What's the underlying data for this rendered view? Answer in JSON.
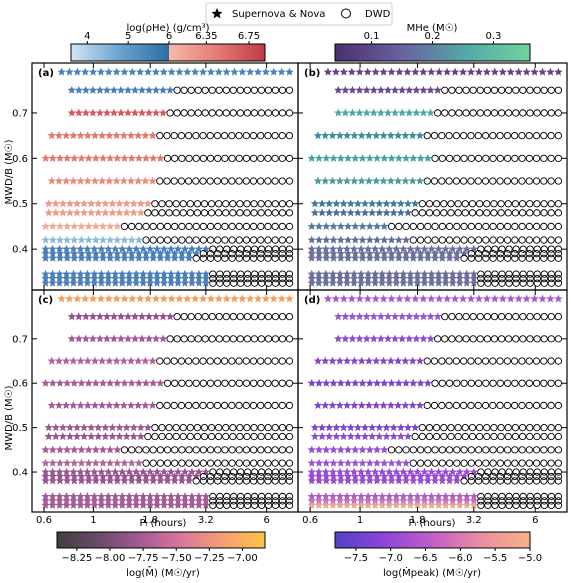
{
  "legend": {
    "entries": [
      {
        "label": "Supernova & Nova",
        "marker": "filled-star"
      },
      {
        "label": "DWD",
        "marker": "open-circle"
      }
    ]
  },
  "colorbars": [
    {
      "id": "rho",
      "title": "log(ρHe) (g/cm³)",
      "segments": [
        {
          "ticks": [
            "4",
            "5",
            "6"
          ],
          "range": [
            3.6,
            6.0
          ],
          "gradient": [
            "#d2e6f2",
            "#6aa3cf",
            "#2b6ea7"
          ]
        },
        {
          "ticks": [
            "6.35",
            "6.75"
          ],
          "range": [
            6.0,
            6.9
          ],
          "gradient": [
            "#f6b9a8",
            "#e47c72",
            "#c0394a"
          ]
        }
      ]
    },
    {
      "id": "mhe",
      "title": "MHe (M☉)",
      "ticks": [
        "0.1",
        "0.2",
        "0.3"
      ],
      "range": [
        0.04,
        0.36
      ],
      "gradient": [
        "#4b2f6e",
        "#6a5f9e",
        "#55a8a8",
        "#6fd39c"
      ]
    },
    {
      "id": "mdot",
      "title": "log(M̄̇) (M☉/yr)",
      "ticks": [
        "−8.25",
        "−8.00",
        "−7.75",
        "−7.50",
        "−7.25",
        "−7.00"
      ],
      "range": [
        -8.4,
        -6.83
      ],
      "gradient": [
        "#3f3f3f",
        "#6b4a6a",
        "#a45a94",
        "#d9779a",
        "#f79f74",
        "#fdc346"
      ]
    },
    {
      "id": "mpeak",
      "title": "log(Ṁpeak) (M☉/yr)",
      "ticks": [
        "−7.5",
        "−7.0",
        "−6.5",
        "−6.0",
        "−5.5",
        "−5.0"
      ],
      "range": [
        -7.8,
        -5.0
      ],
      "gradient": [
        "#5340c7",
        "#8c46d9",
        "#c15ec7",
        "#e98fa2",
        "#f6b087"
      ]
    }
  ],
  "panels": [
    {
      "label": "(a)",
      "colorbar": "rho"
    },
    {
      "label": "(b)",
      "colorbar": "mhe"
    },
    {
      "label": "(c)",
      "colorbar": "mdot"
    },
    {
      "label": "(d)",
      "colorbar": "mpeak"
    }
  ],
  "axes": {
    "xlabel": "Pᵢ (hours)",
    "ylabel": "MWD/B (M☉)",
    "xticks": [
      "0.6",
      "1",
      "1.8",
      "3.2",
      "6"
    ],
    "xtick_values": [
      0.6,
      1.0,
      1.8,
      3.2,
      6.0
    ],
    "xscale": "log",
    "xlim": [
      0.53,
      8.3
    ],
    "yticks": [
      "0.4",
      "0.5",
      "0.6",
      "0.7"
    ],
    "ytick_values": [
      0.4,
      0.5,
      0.6,
      0.7
    ],
    "ylim": [
      0.31,
      0.81
    ]
  },
  "chart_data": {
    "type": "scatter",
    "description_rows": "Grid of binary models: each row is a white-dwarf/donor mass; stars = Supernova & Nova outcomes, open circles = DWD outcomes.",
    "rows": [
      {
        "m": 0.79,
        "n_star": 30,
        "n_circle": 0,
        "p_start": 0.72,
        "p_end": 7.6
      },
      {
        "m": 0.75,
        "n_star": 15,
        "n_circle": 17,
        "p_start": 0.8,
        "p_end": 7.6
      },
      {
        "m": 0.7,
        "n_star": 14,
        "n_circle": 18,
        "p_start": 0.8,
        "p_end": 7.6
      },
      {
        "m": 0.65,
        "n_star": 15,
        "n_circle": 19,
        "p_start": 0.65,
        "p_end": 7.6
      },
      {
        "m": 0.6,
        "n_star": 17,
        "n_circle": 18,
        "p_start": 0.61,
        "p_end": 7.6
      },
      {
        "m": 0.55,
        "n_star": 15,
        "n_circle": 19,
        "p_start": 0.65,
        "p_end": 7.6
      },
      {
        "m": 0.5,
        "n_star": 15,
        "n_circle": 20,
        "p_start": 0.63,
        "p_end": 7.6
      },
      {
        "m": 0.48,
        "n_star": 14,
        "n_circle": 21,
        "p_start": 0.63,
        "p_end": 7.6
      },
      {
        "m": 0.45,
        "n_star": 11,
        "n_circle": 24,
        "p_start": 0.61,
        "p_end": 7.6
      },
      {
        "m": 0.42,
        "n_star": 14,
        "n_circle": 21,
        "p_start": 0.61,
        "p_end": 7.6
      },
      {
        "m": 0.4,
        "n_star": 24,
        "n_circle": 12,
        "p_start": 0.61,
        "p_end": 7.6
      },
      {
        "m": 0.39,
        "n_star": 22,
        "n_circle": 13,
        "p_start": 0.61,
        "p_end": 7.6
      },
      {
        "m": 0.38,
        "n_star": 21,
        "n_circle": 14,
        "p_start": 0.61,
        "p_end": 7.6
      },
      {
        "m": 0.345,
        "n_star": 24,
        "n_circle": 12,
        "p_start": 0.61,
        "p_end": 7.6
      },
      {
        "m": 0.335,
        "n_star": 24,
        "n_circle": 12,
        "p_start": 0.61,
        "p_end": 7.6
      },
      {
        "m": 0.325,
        "n_star": 24,
        "n_circle": 12,
        "p_start": 0.61,
        "p_end": 7.6
      }
    ],
    "row_colors": {
      "a": [
        "#4a7fb8",
        "#4a7fb8",
        "#d9575e",
        "#e4776f",
        "#e4776f",
        "#e98a7c",
        "#f29a88",
        "#f29a88",
        "#f5a898",
        "#8cb9dc",
        "#4a7fb8",
        "#4a7fb8",
        "#4a7fb8",
        "#4a7fb8",
        "#4a7fb8",
        "#4a7fb8"
      ],
      "b": [
        "#6a3f86",
        "#6a4a8e",
        "#4fa8a3",
        "#3f8f99",
        "#4aa3a3",
        "#4f9aa0",
        "#3f7f9a",
        "#4a6f96",
        "#557a9c",
        "#5a6f99",
        "#6a6f9c",
        "#6a6f9c",
        "#6a6f9c",
        "#6a6f9c",
        "#6a6f9c",
        "#6a6f9c"
      ],
      "c": [
        "#f2a060",
        "#9a4f8e",
        "#a8589a",
        "#b0609e",
        "#a85a96",
        "#a45a94",
        "#9e5a92",
        "#9a548f",
        "#a85a96",
        "#b06596",
        "#9a5490",
        "#9a5490",
        "#9a5490",
        "#a45a94",
        "#a45a94",
        "#a45a94"
      ],
      "d": [
        "#a65ad6",
        "#9a55d0",
        "#8a4fcf",
        "#8447c9",
        "#7a45c7",
        "#7f48cb",
        "#7f48cb",
        "#8a4fcf",
        "#944fd0",
        "#9a55d0",
        "#9a4bd3",
        "#9a4bd3",
        "#9a4bd3",
        "#b05ac9",
        "#c06fc0",
        "#e7a596"
      ]
    }
  }
}
